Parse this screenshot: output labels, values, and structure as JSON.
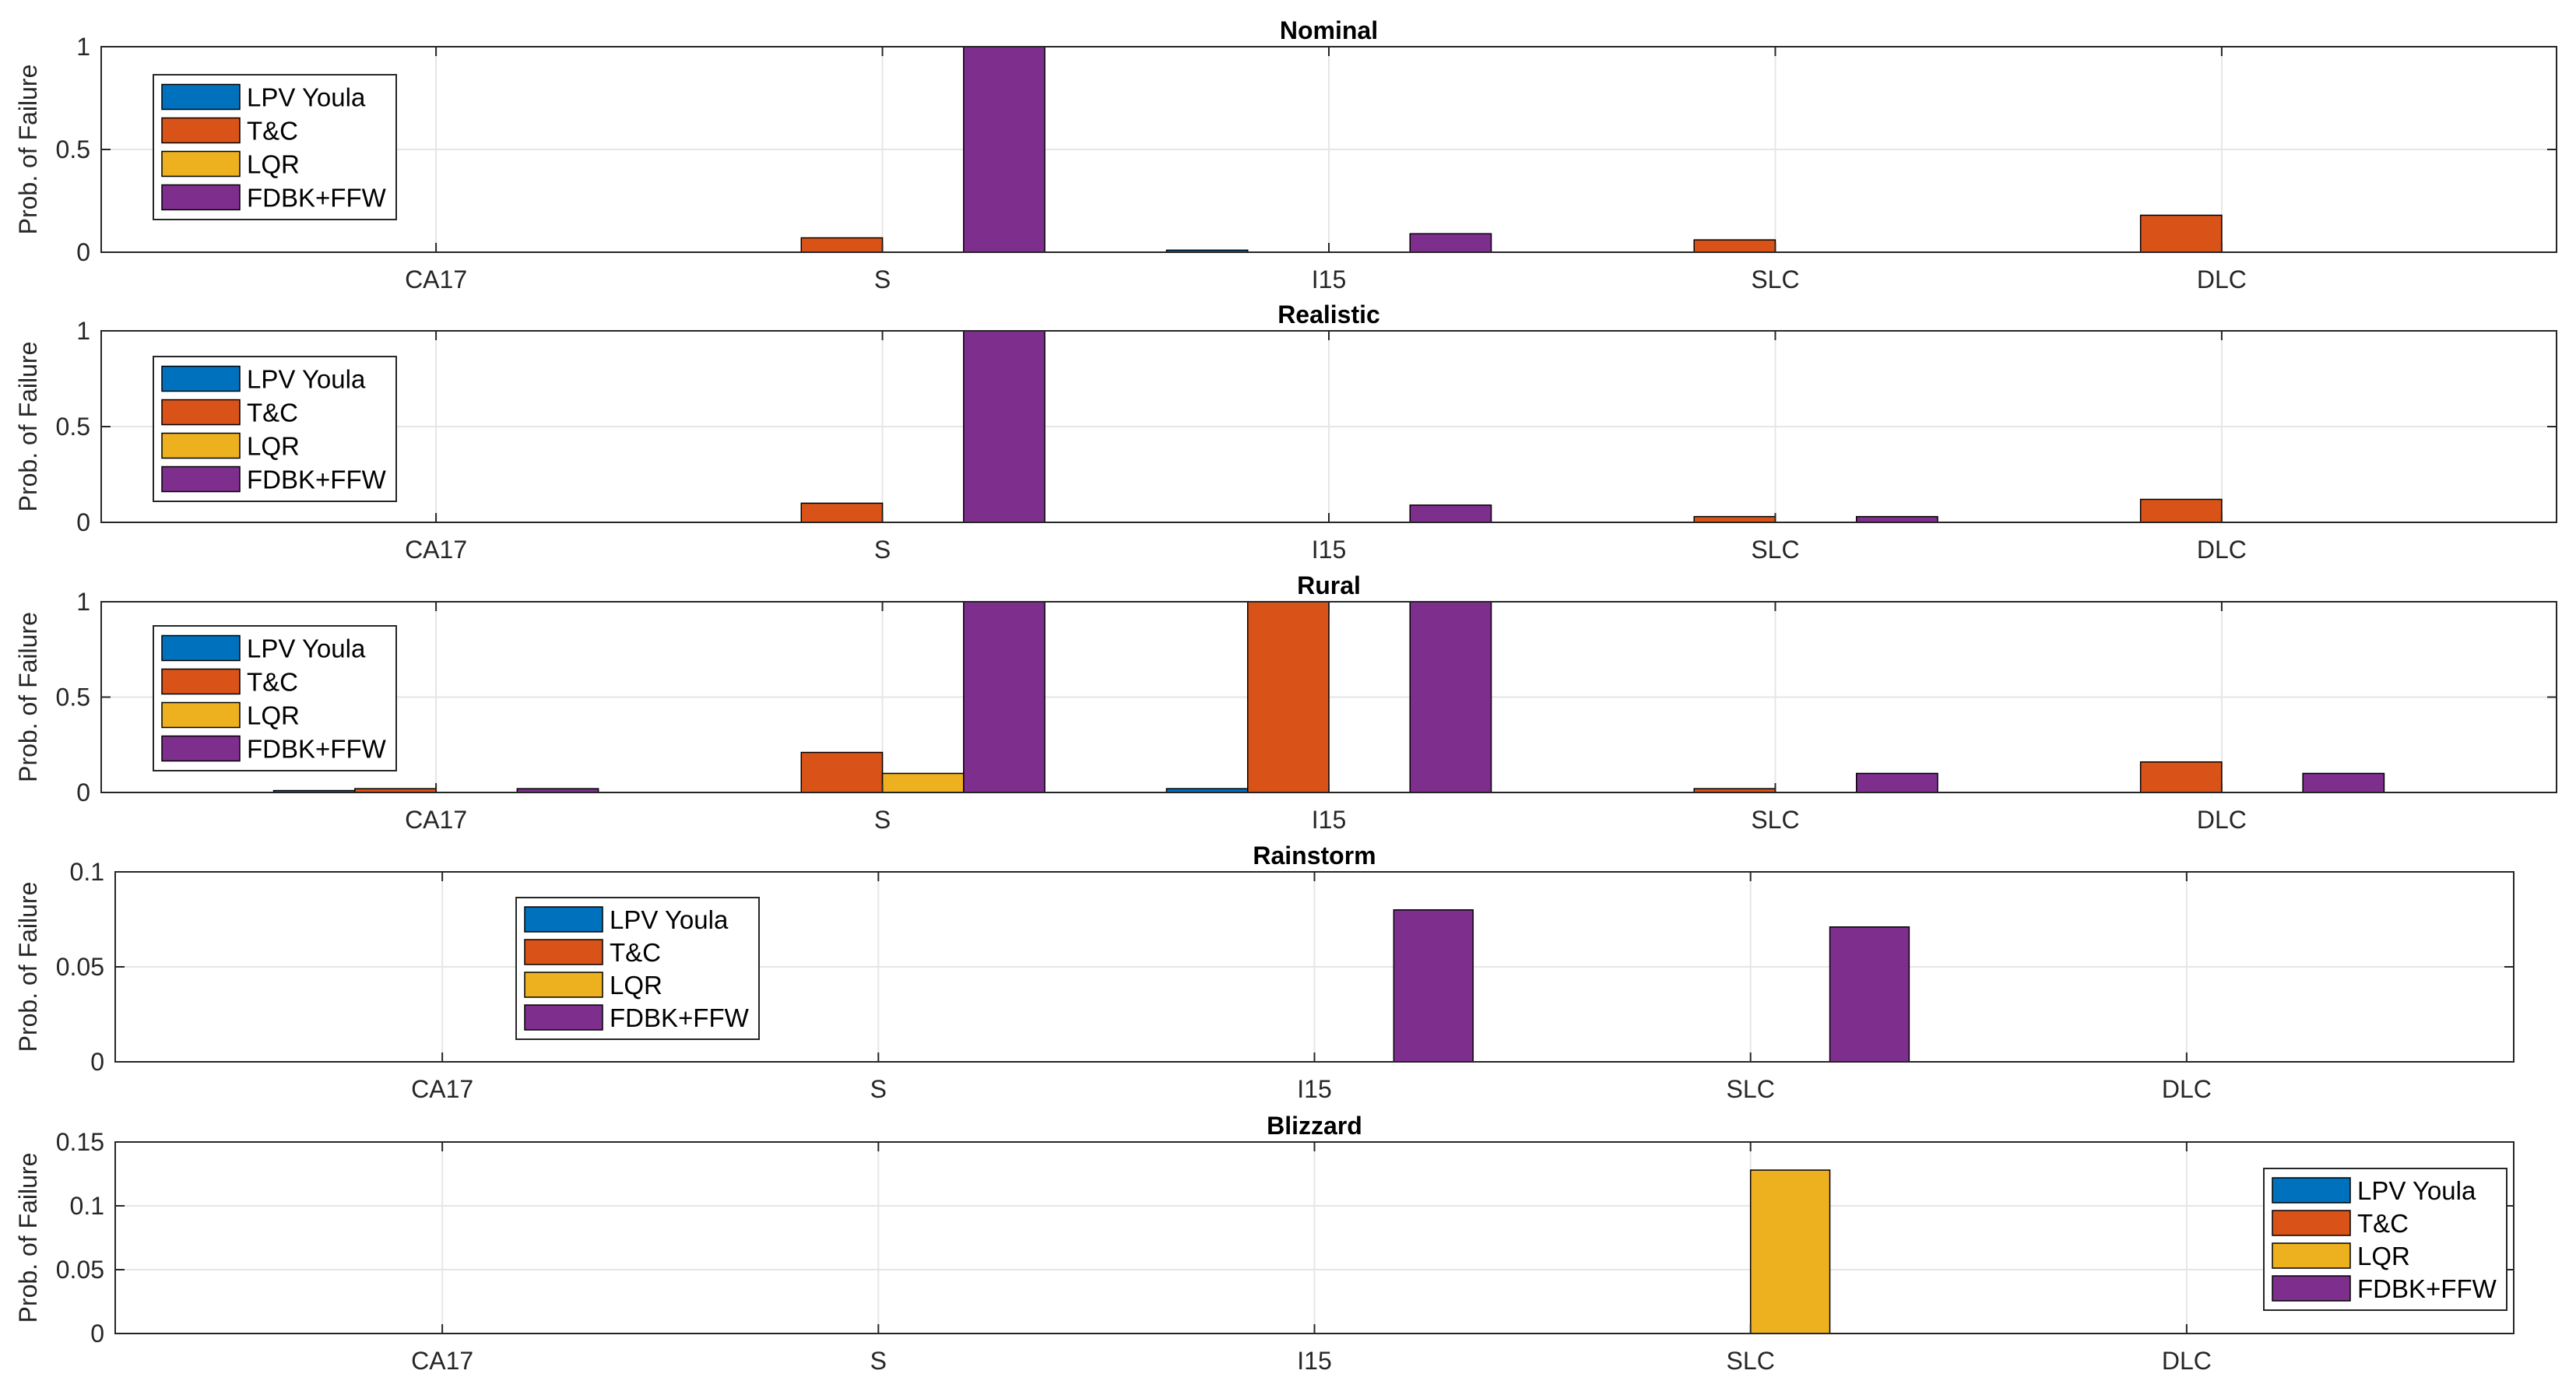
{
  "chart_data": {
    "type": "bar",
    "categories": [
      "CA17",
      "S",
      "I15",
      "SLC",
      "DLC"
    ],
    "series_names": [
      "LPV Youla",
      "T&C",
      "LQR",
      "FDBK+FFW"
    ],
    "colors": [
      "#0072BD",
      "#D95319",
      "#EDB120",
      "#7E2F8E"
    ],
    "ylabel": "Prob. of Failure",
    "panels": [
      {
        "title": "Nominal",
        "ylim": [
          0,
          1
        ],
        "yticks": [
          0,
          0.5,
          1
        ],
        "ytick_labels": [
          "0",
          "0.5",
          "1"
        ],
        "legend": "top-left",
        "series": [
          {
            "name": "LPV Youla",
            "values": [
              0,
              0,
              0.01,
              0,
              0
            ]
          },
          {
            "name": "T&C",
            "values": [
              0,
              0.07,
              0,
              0.06,
              0.18
            ]
          },
          {
            "name": "LQR",
            "values": [
              0,
              0,
              0,
              0,
              0
            ]
          },
          {
            "name": "FDBK+FFW",
            "values": [
              0,
              1,
              0.09,
              0,
              0
            ]
          }
        ]
      },
      {
        "title": "Realistic",
        "ylim": [
          0,
          1
        ],
        "yticks": [
          0,
          0.5,
          1
        ],
        "ytick_labels": [
          "0",
          "0.5",
          "1"
        ],
        "legend": "top-left",
        "series": [
          {
            "name": "LPV Youla",
            "values": [
              0,
              0,
              0,
              0,
              0
            ]
          },
          {
            "name": "T&C",
            "values": [
              0,
              0.1,
              0,
              0.03,
              0.12
            ]
          },
          {
            "name": "LQR",
            "values": [
              0,
              0,
              0,
              0,
              0
            ]
          },
          {
            "name": "FDBK+FFW",
            "values": [
              0,
              1,
              0.09,
              0.03,
              0
            ]
          }
        ]
      },
      {
        "title": "Rural",
        "ylim": [
          0,
          1
        ],
        "yticks": [
          0,
          0.5,
          1
        ],
        "ytick_labels": [
          "0",
          "0.5",
          "1"
        ],
        "legend": "top-left",
        "series": [
          {
            "name": "LPV Youla",
            "values": [
              0.01,
              0,
              0.02,
              0,
              0
            ]
          },
          {
            "name": "T&C",
            "values": [
              0.02,
              0.21,
              1,
              0.02,
              0.16
            ]
          },
          {
            "name": "LQR",
            "values": [
              0,
              0.1,
              0,
              0,
              0
            ]
          },
          {
            "name": "FDBK+FFW",
            "values": [
              0.02,
              1,
              1,
              0.1,
              0.1
            ]
          }
        ]
      },
      {
        "title": "Rainstorm",
        "ylim": [
          0,
          0.1
        ],
        "yticks": [
          0,
          0.05,
          0.1
        ],
        "ytick_labels": [
          "0",
          "0.05",
          "0.1"
        ],
        "legend": "top-left-inset",
        "series": [
          {
            "name": "LPV Youla",
            "values": [
              0,
              0,
              0,
              0,
              0
            ]
          },
          {
            "name": "T&C",
            "values": [
              0,
              0,
              0,
              0,
              0
            ]
          },
          {
            "name": "LQR",
            "values": [
              0,
              0,
              0,
              0,
              0
            ]
          },
          {
            "name": "FDBK+FFW",
            "values": [
              0,
              0,
              0.08,
              0.071,
              0
            ]
          }
        ]
      },
      {
        "title": "Blizzard",
        "ylim": [
          0,
          0.15
        ],
        "yticks": [
          0,
          0.05,
          0.1,
          0.15
        ],
        "ytick_labels": [
          "0",
          "0.05",
          "0.1",
          "0.15"
        ],
        "legend": "right",
        "series": [
          {
            "name": "LPV Youla",
            "values": [
              0,
              0,
              0,
              0,
              0
            ]
          },
          {
            "name": "T&C",
            "values": [
              0,
              0,
              0,
              0,
              0
            ]
          },
          {
            "name": "LQR",
            "values": [
              0,
              0,
              0,
              0.128,
              0
            ]
          },
          {
            "name": "FDBK+FFW",
            "values": [
              0,
              0,
              0,
              0,
              0
            ]
          }
        ]
      }
    ]
  }
}
